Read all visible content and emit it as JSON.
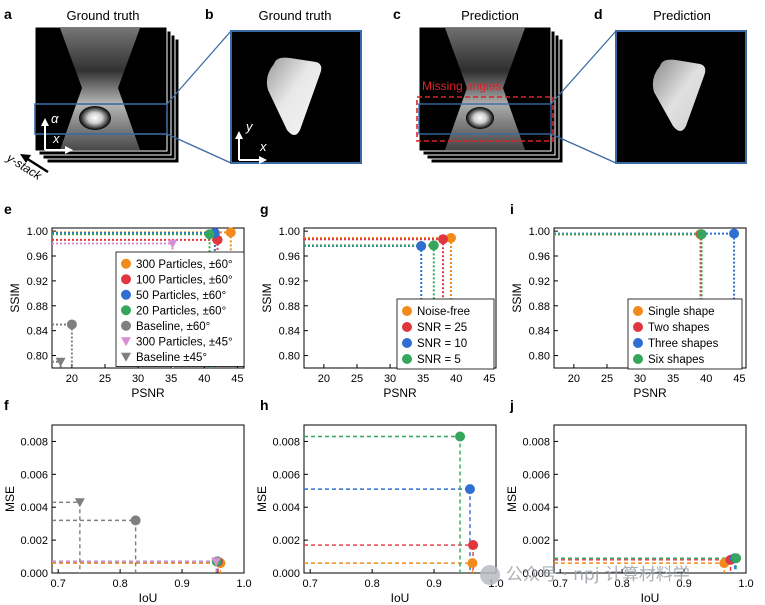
{
  "top_panels": [
    {
      "letter": "a",
      "title": "Ground truth",
      "axis_v": "α",
      "axis_h": "x",
      "stack_label": "y-stack"
    },
    {
      "letter": "b",
      "title": "Ground truth",
      "axis_v": "y",
      "axis_h": "x"
    },
    {
      "letter": "c",
      "title": "Prediction",
      "overlay": "Missing angles"
    },
    {
      "letter": "d",
      "title": "Prediction"
    }
  ],
  "colors": {
    "orange": "#f28a1c",
    "red": "#e0373f",
    "blue": "#2e6fd1",
    "green": "#35a65b",
    "gray": "#7f7f7f",
    "pink": "#d98fd6",
    "teal": "#2f9e93",
    "frame": "#3a6aa3"
  },
  "chart_data": [
    {
      "id": "e",
      "letter": "e",
      "type": "scatter",
      "xlabel": "PSNR",
      "ylabel": "SSIM",
      "xlim": [
        17,
        46
      ],
      "ylim": [
        0.78,
        1.005
      ],
      "xticks": [
        "20",
        "25",
        "30",
        "35",
        "40",
        "45"
      ],
      "xtick_values": [
        20,
        25,
        30,
        35,
        40,
        45
      ],
      "yticks": [
        "0.80",
        "0.84",
        "0.88",
        "0.92",
        "0.96",
        "1.00"
      ],
      "ytick_values": [
        0.8,
        0.84,
        0.88,
        0.92,
        0.96,
        1.0
      ],
      "legend": "right",
      "series": [
        {
          "name": "300 Particles, ±60°",
          "color": "#f28a1c",
          "marker": "circle",
          "x": 44.0,
          "y": 0.998
        },
        {
          "name": "100 Particles, ±60°",
          "color": "#e0373f",
          "marker": "circle",
          "x": 42.0,
          "y": 0.986
        },
        {
          "name": "50 Particles, ±60°",
          "color": "#2e6fd1",
          "marker": "circle",
          "x": 41.6,
          "y": 0.997
        },
        {
          "name": "20 Particles, ±60°",
          "color": "#35a65b",
          "marker": "circle",
          "x": 40.8,
          "y": 0.995
        },
        {
          "name": "Baseline, ±60°",
          "color": "#7f7f7f",
          "marker": "circle",
          "x": 20.0,
          "y": 0.85
        },
        {
          "name": "300 Particles, ±45°",
          "color": "#d98fd6",
          "marker": "triangle",
          "x": 35.2,
          "y": 0.98
        },
        {
          "name": "Baseline ±45°",
          "color": "#7f7f7f",
          "marker": "triangle",
          "x": 18.3,
          "y": 0.79
        }
      ]
    },
    {
      "id": "g",
      "letter": "g",
      "type": "scatter",
      "xlabel": "PSNR",
      "ylabel": "SSIM",
      "xlim": [
        17,
        46
      ],
      "ylim": [
        0.78,
        1.005
      ],
      "xticks": [
        "20",
        "25",
        "30",
        "35",
        "40",
        "45"
      ],
      "xtick_values": [
        20,
        25,
        30,
        35,
        40,
        45
      ],
      "yticks": [
        "0.80",
        "0.84",
        "0.88",
        "0.92",
        "0.96",
        "1.00"
      ],
      "ytick_values": [
        0.8,
        0.84,
        0.88,
        0.92,
        0.96,
        1.0
      ],
      "legend": "bottom-right",
      "series": [
        {
          "name": "Noise-free",
          "color": "#f28a1c",
          "marker": "circle",
          "x": 39.2,
          "y": 0.989
        },
        {
          "name": "SNR = 25",
          "color": "#e0373f",
          "marker": "circle",
          "x": 38.0,
          "y": 0.987
        },
        {
          "name": "SNR = 10",
          "color": "#2e6fd1",
          "marker": "circle",
          "x": 34.7,
          "y": 0.976
        },
        {
          "name": "SNR = 5",
          "color": "#35a65b",
          "marker": "circle",
          "x": 36.6,
          "y": 0.977
        }
      ]
    },
    {
      "id": "i",
      "letter": "i",
      "type": "scatter",
      "xlabel": "PSNR",
      "ylabel": "SSIM",
      "xlim": [
        17,
        46
      ],
      "ylim": [
        0.78,
        1.005
      ],
      "xticks": [
        "20",
        "25",
        "30",
        "35",
        "40",
        "45"
      ],
      "xtick_values": [
        20,
        25,
        30,
        35,
        40,
        45
      ],
      "yticks": [
        "0.80",
        "0.84",
        "0.88",
        "0.92",
        "0.96",
        "1.00"
      ],
      "ytick_values": [
        0.8,
        0.84,
        0.88,
        0.92,
        0.96,
        1.0
      ],
      "legend": "bottom-right",
      "series": [
        {
          "name": "Single shape",
          "color": "#f28a1c",
          "marker": "circle",
          "x": 39.1,
          "y": 0.995
        },
        {
          "name": "Two shapes",
          "color": "#e0373f",
          "marker": "circle",
          "x": 39.2,
          "y": 0.995
        },
        {
          "name": "Three shapes",
          "color": "#2e6fd1",
          "marker": "circle",
          "x": 44.2,
          "y": 0.996
        },
        {
          "name": "Six shapes",
          "color": "#35a65b",
          "marker": "circle",
          "x": 39.3,
          "y": 0.995
        }
      ]
    },
    {
      "id": "f",
      "letter": "f",
      "type": "scatter",
      "xlabel": "IoU",
      "ylabel": "MSE",
      "xlim": [
        0.69,
        1.0
      ],
      "ylim": [
        0,
        0.009
      ],
      "xticks": [
        "0.7",
        "0.8",
        "0.9",
        "1.0"
      ],
      "xtick_values": [
        0.7,
        0.8,
        0.9,
        1.0
      ],
      "yticks": [
        "0.000",
        "0.002",
        "0.004",
        "0.006",
        "0.008"
      ],
      "ytick_values": [
        0,
        0.002,
        0.004,
        0.006,
        0.008
      ],
      "series": [
        {
          "color": "#f28a1c",
          "marker": "circle",
          "x": 0.962,
          "y": 0.0006
        },
        {
          "color": "#e0373f",
          "marker": "circle",
          "x": 0.958,
          "y": 0.0007
        },
        {
          "color": "#2e6fd1",
          "marker": "circle",
          "x": 0.957,
          "y": 0.0007
        },
        {
          "color": "#35a65b",
          "marker": "circle",
          "x": 0.956,
          "y": 0.0007
        },
        {
          "color": "#7f7f7f",
          "marker": "circle",
          "x": 0.825,
          "y": 0.0032
        },
        {
          "color": "#d98fd6",
          "marker": "triangle",
          "x": 0.955,
          "y": 0.0007
        },
        {
          "color": "#7f7f7f",
          "marker": "triangle",
          "x": 0.735,
          "y": 0.0043
        }
      ]
    },
    {
      "id": "h",
      "letter": "h",
      "type": "scatter",
      "xlabel": "IoU",
      "ylabel": "MSE",
      "xlim": [
        0.69,
        1.0
      ],
      "ylim": [
        0,
        0.009
      ],
      "xticks": [
        "0.7",
        "0.8",
        "0.9",
        "1.0"
      ],
      "xtick_values": [
        0.7,
        0.8,
        0.9,
        1.0
      ],
      "yticks": [
        "0.000",
        "0.002",
        "0.004",
        "0.006",
        "0.008"
      ],
      "ytick_values": [
        0,
        0.002,
        0.004,
        0.006,
        0.008
      ],
      "series": [
        {
          "color": "#f28a1c",
          "marker": "circle",
          "x": 0.962,
          "y": 0.0006
        },
        {
          "color": "#e0373f",
          "marker": "circle",
          "x": 0.963,
          "y": 0.0017
        },
        {
          "color": "#2e6fd1",
          "marker": "circle",
          "x": 0.958,
          "y": 0.0051
        },
        {
          "color": "#35a65b",
          "marker": "circle",
          "x": 0.942,
          "y": 0.0083
        }
      ]
    },
    {
      "id": "j",
      "letter": "j",
      "type": "scatter",
      "xlabel": "IoU",
      "ylabel": "MSE",
      "xlim": [
        0.69,
        1.0
      ],
      "ylim": [
        0,
        0.009
      ],
      "xticks": [
        "0.7",
        "0.8",
        "0.9",
        "1.0"
      ],
      "xtick_values": [
        0.7,
        0.8,
        0.9,
        1.0
      ],
      "yticks": [
        "0.000",
        "0.002",
        "0.004",
        "0.006",
        "0.008"
      ],
      "ytick_values": [
        0,
        0.002,
        0.004,
        0.006,
        0.008
      ],
      "series": [
        {
          "color": "#f28a1c",
          "marker": "circle",
          "x": 0.965,
          "y": 0.0006
        },
        {
          "color": "#e0373f",
          "marker": "circle",
          "x": 0.975,
          "y": 0.0008
        },
        {
          "color": "#2e6fd1",
          "marker": "circle",
          "x": 0.982,
          "y": 0.0009
        },
        {
          "color": "#35a65b",
          "marker": "circle",
          "x": 0.984,
          "y": 0.0009
        }
      ]
    }
  ],
  "watermark": "公众号 · npj 计算材料学",
  "watermark_icon": "wechat-icon"
}
